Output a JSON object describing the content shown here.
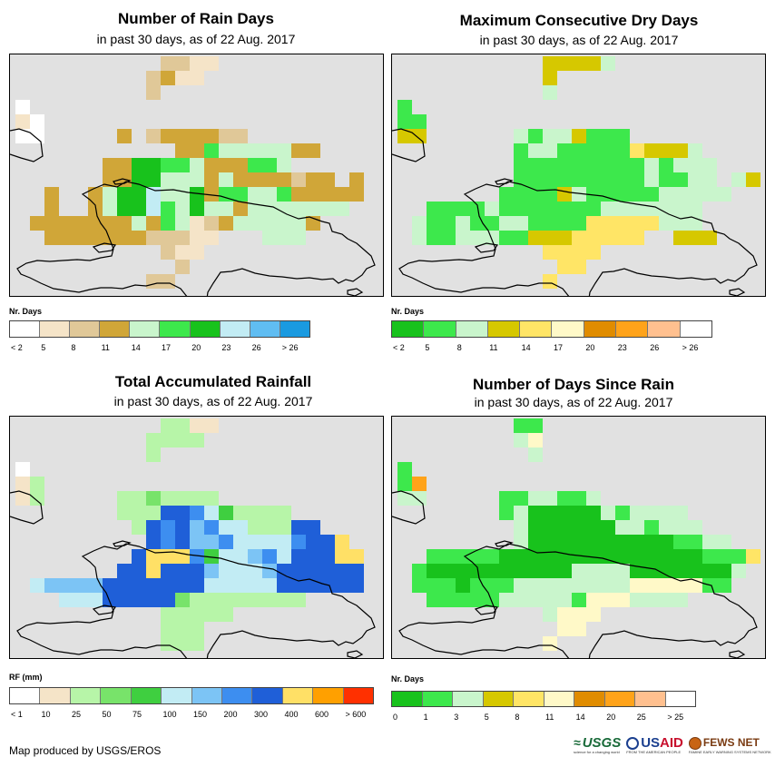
{
  "credit": "Map produced by USGS/EROS",
  "logos": {
    "usgs": {
      "name": "USGS",
      "tagline": "science for a changing world"
    },
    "usaid": {
      "name_us": "US",
      "name_aid": "AID",
      "tagline": "FROM THE AMERICAN PEOPLE"
    },
    "fews": {
      "name": "FEWS NET",
      "tagline": "FAMINE EARLY WARNING SYSTEMS NETWORK"
    }
  },
  "panels": [
    {
      "id": "rain-days",
      "title": "Number of Rain Days",
      "subtitle": "in past 30 days, as of 22 Aug. 2017",
      "legend_title": "Nr. Days",
      "legend_labels": [
        "< 2",
        "5",
        "8",
        "11",
        "14",
        "17",
        "20",
        "23",
        "26",
        "> 26"
      ],
      "legend_colors": [
        "#ffffff",
        "#f5e4c8",
        "#e0c898",
        "#d0a638",
        "#c9f5cc",
        "#3de84c",
        "#18c21c",
        "#c2ecf4",
        "#60bdf2",
        "#1a9ae0"
      ],
      "grid": [
        "..........2211........",
        ".........2311.........",
        ".........2...........",
        "0.....................",
        "10....................",
        "00.....3.2333322.......",
        "...........3354444433.....",
        "......3366554333554......",
        "......3366444343333233.3...",
        "..3..3466744635544533333.",
        "..3..346675464434444444.",
        ".33333334354123444443..",
        "..333333322211...444...",
        "..........211.........",
        "...........2..........",
        ".........22..........."
      ]
    },
    {
      "id": "max-dry-days",
      "title": "Maximum Consecutive Dry Days",
      "subtitle": "in past 30 days, as of 22 Aug. 2017",
      "legend_title": "Nr. Days",
      "legend_labels": [
        "< 2",
        "5",
        "8",
        "11",
        "14",
        "17",
        "20",
        "23",
        "26",
        "> 26"
      ],
      "legend_colors": [
        "#18c21c",
        "#3de84c",
        "#c9f5cc",
        "#d6c800",
        "#ffe566",
        "#fff9c8",
        "#e08c00",
        "#ffa31a",
        "#ffc08f",
        "#ffffff"
      ],
      "grid": [
        "..........33332.......",
        "..........3............",
        "..........2...........",
        "1.....................",
        "11....................",
        "33......21223111.......",
        "........1221111143332....",
        "........11111111121222....",
        "........11111111121122.23...",
        ".......1111321111122222.",
        "..1111211111112222222..",
        ".21121122111144444222..",
        ".2112221133344444..333.",
        "..........4444.........",
        "...........44.........",
        "..........4..........."
      ]
    },
    {
      "id": "total-rainfall",
      "title": "Total Accumulated Rainfall",
      "subtitle": "in past 30 days, as of 22 Aug. 2017",
      "legend_title": "RF (mm)",
      "legend_labels": [
        "< 1",
        "10",
        "25",
        "50",
        "75",
        "100",
        "150",
        "200",
        "300",
        "400",
        "600",
        "> 600"
      ],
      "legend_colors": [
        "#ffffff",
        "#f5e4c8",
        "#b7f5a8",
        "#78e36a",
        "#3fcf40",
        "#c2ecf4",
        "#7cc4f5",
        "#3d8ef0",
        "#1f5fd8",
        "#ffe066",
        "#ffa000",
        "#ff3000"
      ],
      "grid": [
        "..........2211........",
        ".........2222.........",
        ".........2............",
        "0.....................",
        "12....................",
        "12.....2232222.........",
        ".......222887542222......",
        "........2878675522288.....",
        ".........87866755557889...",
        "........8999745567588899..",
        ".......88988865556888888..",
        ".56666888888855555888888..",
        "...55588888322222222.......",
        "..........22222.........",
        "..........222...........",
        "..........222..........."
      ]
    },
    {
      "id": "days-since-rain",
      "title": "Number of Days Since Rain",
      "subtitle": "in past 30 days, as of 22 Aug. 2017",
      "legend_title": "Nr. Days",
      "legend_labels": [
        "0",
        "1",
        "3",
        "5",
        "8",
        "11",
        "14",
        "20",
        "25",
        "> 25"
      ],
      "legend_colors": [
        "#18c21c",
        "#3de84c",
        "#c9f5cc",
        "#d6c800",
        "#ffe566",
        "#fff9c8",
        "#e08c00",
        "#ffa31a",
        "#ffc08f",
        "#ffffff"
      ],
      "grid": [
        "........11.........",
        "........25.........",
        ".........2..........",
        "1....................",
        "17...................",
        "22.....1122112.........",
        ".......1200000212222......",
        "........2000000221222.....",
        "........200000000001122....",
        "..11111000000000000001114.",
        ".10000000000222200000002.",
        ".1110111222222225555511..",
        "..111112222215552222.....",
        "..........2555.........",
        "...........55.........",
        "..........5..........."
      ]
    }
  ]
}
